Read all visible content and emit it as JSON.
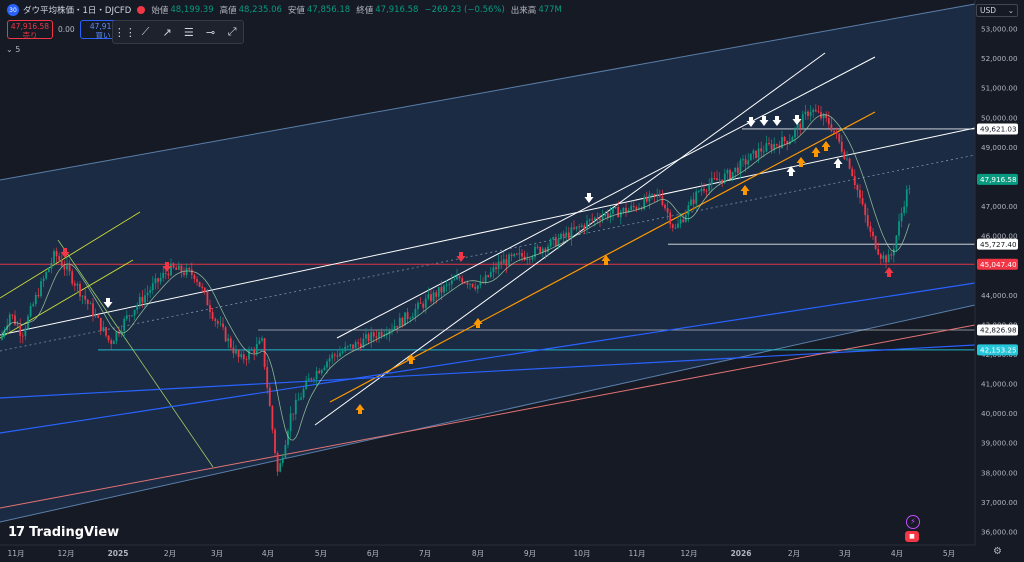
{
  "header": {
    "symbol_icon": "30",
    "title": "ダウ平均株価・1日・DJCFD",
    "open_label": "始値",
    "open": "48,199.39",
    "high_label": "高値",
    "high": "48,235.06",
    "low_label": "安値",
    "low": "47,856.18",
    "close_label": "終値",
    "close": "47,916.58",
    "change": "−269.23 (−0.56%)",
    "volume_label": "出来高",
    "volume": "477",
    "volume_unit": "M"
  },
  "trade": {
    "sell_price": "47,916.58",
    "sell_label": "売り",
    "spread": "0.00",
    "buy_price": "47,916",
    "buy_label": "買い"
  },
  "indicator_toggle": "⌄ 5",
  "currency": "USD",
  "brand": "TradingView",
  "colors": {
    "background": "#161a25",
    "channel": "#1f3a5c",
    "up": "#089981",
    "down": "#f23645"
  },
  "chart_data": {
    "type": "candlestick",
    "ylim": [
      35800,
      53600
    ],
    "y_ticks": [
      36000,
      37000,
      38000,
      39000,
      40000,
      41000,
      42000,
      43000,
      44000,
      45000,
      46000,
      47000,
      48000,
      49000,
      50000,
      51000,
      52000,
      53000
    ],
    "y_tick_labels": [
      "36,000.00",
      "37,000.00",
      "38,000.00",
      "39,000.00",
      "40,000.00",
      "41,000.00",
      "42,000.00",
      "43,000.00",
      "44,000.00",
      "45,000.00",
      "46,000.00",
      "47,000.00",
      "48,000.00",
      "49,000.00",
      "50,000.00",
      "51,000.00",
      "52,000.00",
      "53,000.00"
    ],
    "x_labels": [
      "11月",
      "12月",
      "2025",
      "2月",
      "3月",
      "4月",
      "5月",
      "6月",
      "7月",
      "8月",
      "9月",
      "10月",
      "11月",
      "12月",
      "2026",
      "2月",
      "3月",
      "4月",
      "5月"
    ],
    "price_levels": [
      {
        "value": 49621.03,
        "label": "49,621.03",
        "color": "#ffffff"
      },
      {
        "value": 47916.58,
        "label": "47,916.58",
        "color": "#089981"
      },
      {
        "value": 45727.4,
        "label": "45,727.40",
        "color": "#ffffff"
      },
      {
        "value": 45047.4,
        "label": "45,047.40",
        "color": "#f23645"
      },
      {
        "value": 42826.98,
        "label": "42,826.98",
        "color": "#ffffff"
      },
      {
        "value": 42153.25,
        "label": "42,153.25",
        "color": "#26c6da"
      }
    ],
    "path": [
      [
        0,
        42500
      ],
      [
        10,
        43400
      ],
      [
        22,
        42700
      ],
      [
        38,
        44100
      ],
      [
        55,
        45400
      ],
      [
        70,
        44700
      ],
      [
        90,
        43600
      ],
      [
        110,
        42400
      ],
      [
        130,
        43400
      ],
      [
        150,
        44200
      ],
      [
        170,
        44900
      ],
      [
        195,
        44700
      ],
      [
        215,
        43200
      ],
      [
        240,
        41800
      ],
      [
        262,
        42400
      ],
      [
        278,
        37900
      ],
      [
        290,
        39900
      ],
      [
        310,
        41200
      ],
      [
        330,
        41900
      ],
      [
        360,
        42400
      ],
      [
        400,
        43100
      ],
      [
        430,
        43900
      ],
      [
        460,
        44600
      ],
      [
        480,
        44300
      ],
      [
        500,
        45100
      ],
      [
        530,
        45400
      ],
      [
        560,
        45900
      ],
      [
        600,
        46700
      ],
      [
        630,
        46900
      ],
      [
        660,
        47400
      ],
      [
        675,
        46200
      ],
      [
        700,
        47600
      ],
      [
        730,
        48100
      ],
      [
        760,
        48900
      ],
      [
        790,
        49300
      ],
      [
        810,
        50300
      ],
      [
        830,
        49800
      ],
      [
        850,
        48400
      ],
      [
        870,
        46100
      ],
      [
        882,
        45300
      ],
      [
        890,
        45200
      ],
      [
        897,
        46100
      ],
      [
        905,
        47300
      ],
      [
        912,
        47950
      ]
    ]
  }
}
